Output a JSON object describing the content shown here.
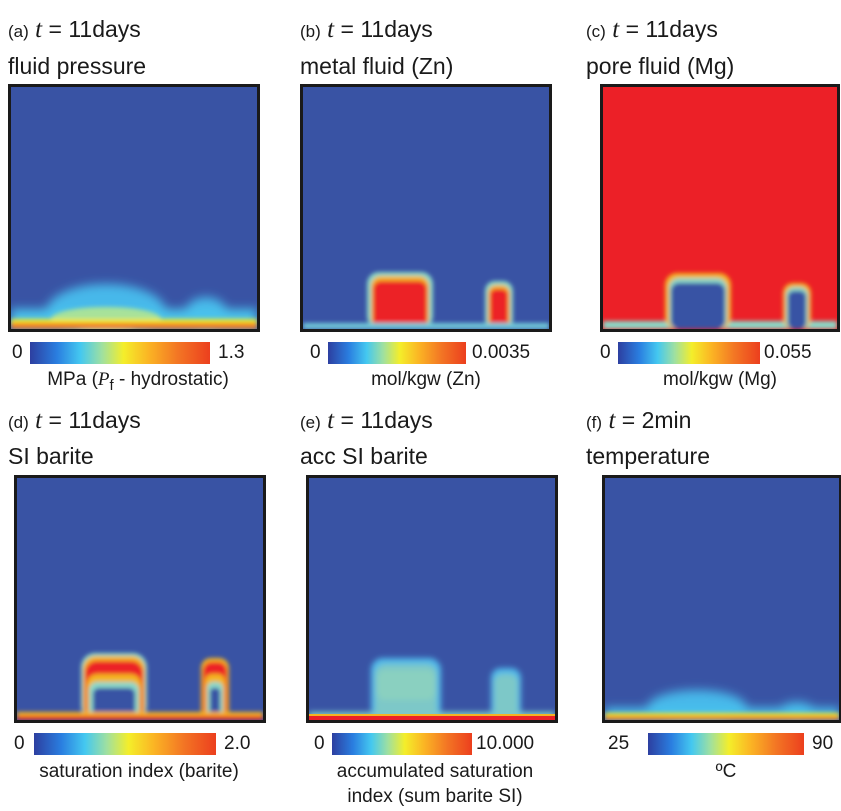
{
  "colors": {
    "background_blue": "#3953a4",
    "saturated_red": "#ec2027",
    "frame": "#1a1a1a"
  },
  "panels": [
    {
      "label": "(a)",
      "t_symbol": "t",
      "equals": "=",
      "time": "11days",
      "title": "fluid pressure",
      "cbar_min": "0",
      "cbar_max": "1.3",
      "unit_text": "MPa (",
      "unit_italic": "P",
      "unit_sub": "f",
      "unit_tail": " - hydrostatic)"
    },
    {
      "label": "(b)",
      "t_symbol": "t",
      "equals": "=",
      "time": "11days",
      "title": "metal fluid (Zn)",
      "cbar_min": "0",
      "cbar_max": "0.0035",
      "unit_text": "mol/kgw (Zn)"
    },
    {
      "label": "(c)",
      "t_symbol": "t",
      "equals": "=",
      "time": "11days",
      "title": "pore fluid (Mg)",
      "cbar_min": "0",
      "cbar_max": "0.055",
      "unit_text": "mol/kgw (Mg)"
    },
    {
      "label": "(d)",
      "t_symbol": "t",
      "equals": "=",
      "time": "11days",
      "title": "SI barite",
      "cbar_min": "0",
      "cbar_max": "2.0",
      "unit_text": "saturation index (barite)"
    },
    {
      "label": "(e)",
      "t_symbol": "t",
      "equals": "=",
      "time": "11days",
      "title": "acc SI barite",
      "cbar_min": "0",
      "cbar_max": "10.000",
      "unit_line1": "accumulated saturation",
      "unit_line2": "index (sum barite SI)"
    },
    {
      "label": "(f)",
      "t_symbol": "t",
      "equals": "=",
      "time": "2min",
      "title": "temperature",
      "cbar_min": "25",
      "cbar_max": "90",
      "unit_text": "ºC"
    }
  ]
}
